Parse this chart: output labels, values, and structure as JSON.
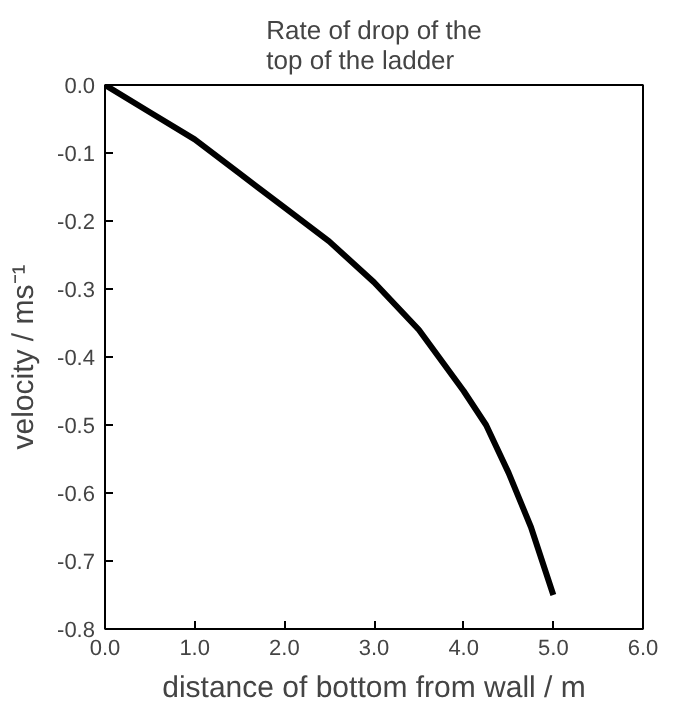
{
  "chart_data": {
    "type": "line",
    "title": "Rate of drop of the\ntop of the ladder",
    "xlabel": "distance of bottom from wall / m",
    "ylabel": "velocity / ms⁻¹",
    "x": [
      0,
      0.5,
      1,
      1.5,
      2,
      2.5,
      3,
      3.5,
      4,
      4.25,
      4.5,
      4.75,
      5
    ],
    "series": [
      {
        "color": "#000000",
        "values": [
          0,
          -0.04,
          -0.08,
          -0.13,
          -0.18,
          -0.23,
          -0.29,
          -0.36,
          -0.45,
          -0.5,
          -0.57,
          -0.65,
          -0.75
        ]
      }
    ],
    "xlim": [
      0,
      6
    ],
    "ylim": [
      -0.8,
      0
    ],
    "xticks": [
      {
        "value": 0,
        "label": "0.0"
      },
      {
        "value": 1,
        "label": "1.0"
      },
      {
        "value": 2,
        "label": "2.0"
      },
      {
        "value": 3,
        "label": "3.0"
      },
      {
        "value": 4,
        "label": "4.0"
      },
      {
        "value": 5,
        "label": "5.0"
      },
      {
        "value": 6,
        "label": "6.0"
      }
    ],
    "yticks": [
      {
        "value": 0,
        "label": "0.0"
      },
      {
        "value": -0.1,
        "label": "-0.1"
      },
      {
        "value": -0.2,
        "label": "-0.2"
      },
      {
        "value": -0.3,
        "label": "-0.3"
      },
      {
        "value": -0.4,
        "label": "-0.4"
      },
      {
        "value": -0.5,
        "label": "-0.5"
      },
      {
        "value": -0.6,
        "label": "-0.6"
      },
      {
        "value": -0.7,
        "label": "-0.7"
      },
      {
        "value": -0.8,
        "label": "-0.8"
      }
    ],
    "grid": false,
    "marker": "none",
    "line_style": "solid"
  }
}
